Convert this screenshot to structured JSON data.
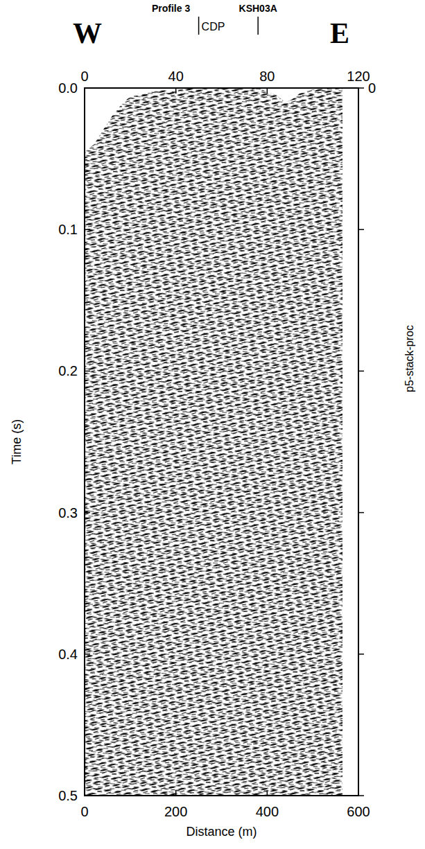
{
  "chart_data": {
    "type": "seismic_section",
    "x_label": "Distance (m)",
    "y_label": "Time (s)",
    "xlim": [
      0,
      600
    ],
    "xticks": [
      0,
      200,
      400,
      600
    ],
    "ylim": [
      0,
      0.5
    ],
    "yticks": [
      {
        "value": 0,
        "label": "0.0"
      },
      0.1,
      0.2,
      0.3,
      0.4,
      0.5
    ],
    "x2lim": [
      0,
      120
    ],
    "x2ticks": [
      0,
      40,
      80,
      120
    ],
    "y2lim": [
      0,
      0.5
    ],
    "y2ticks": [
      0
    ],
    "direction_labels": [
      "W",
      "E"
    ],
    "annotations": [
      {
        "label": "Profile 3",
        "sublabel": "CDP",
        "x": 50
      },
      {
        "label": "KSH03A",
        "x": 76
      }
    ],
    "panel_label": "p5-stack-proc",
    "data_top": {
      "x": [
        0,
        20,
        40,
        60,
        80,
        100,
        130,
        160,
        200,
        260,
        320,
        380,
        420,
        440,
        455,
        470,
        500,
        530,
        565
      ],
      "values": [
        0.045,
        0.04,
        0.03,
        0.02,
        0.012,
        0.006,
        0.003,
        0.002,
        0.001,
        0,
        0,
        0,
        0.005,
        0.01,
        0.008,
        0.004,
        0.001,
        0,
        0
      ]
    },
    "color": "#000000"
  }
}
